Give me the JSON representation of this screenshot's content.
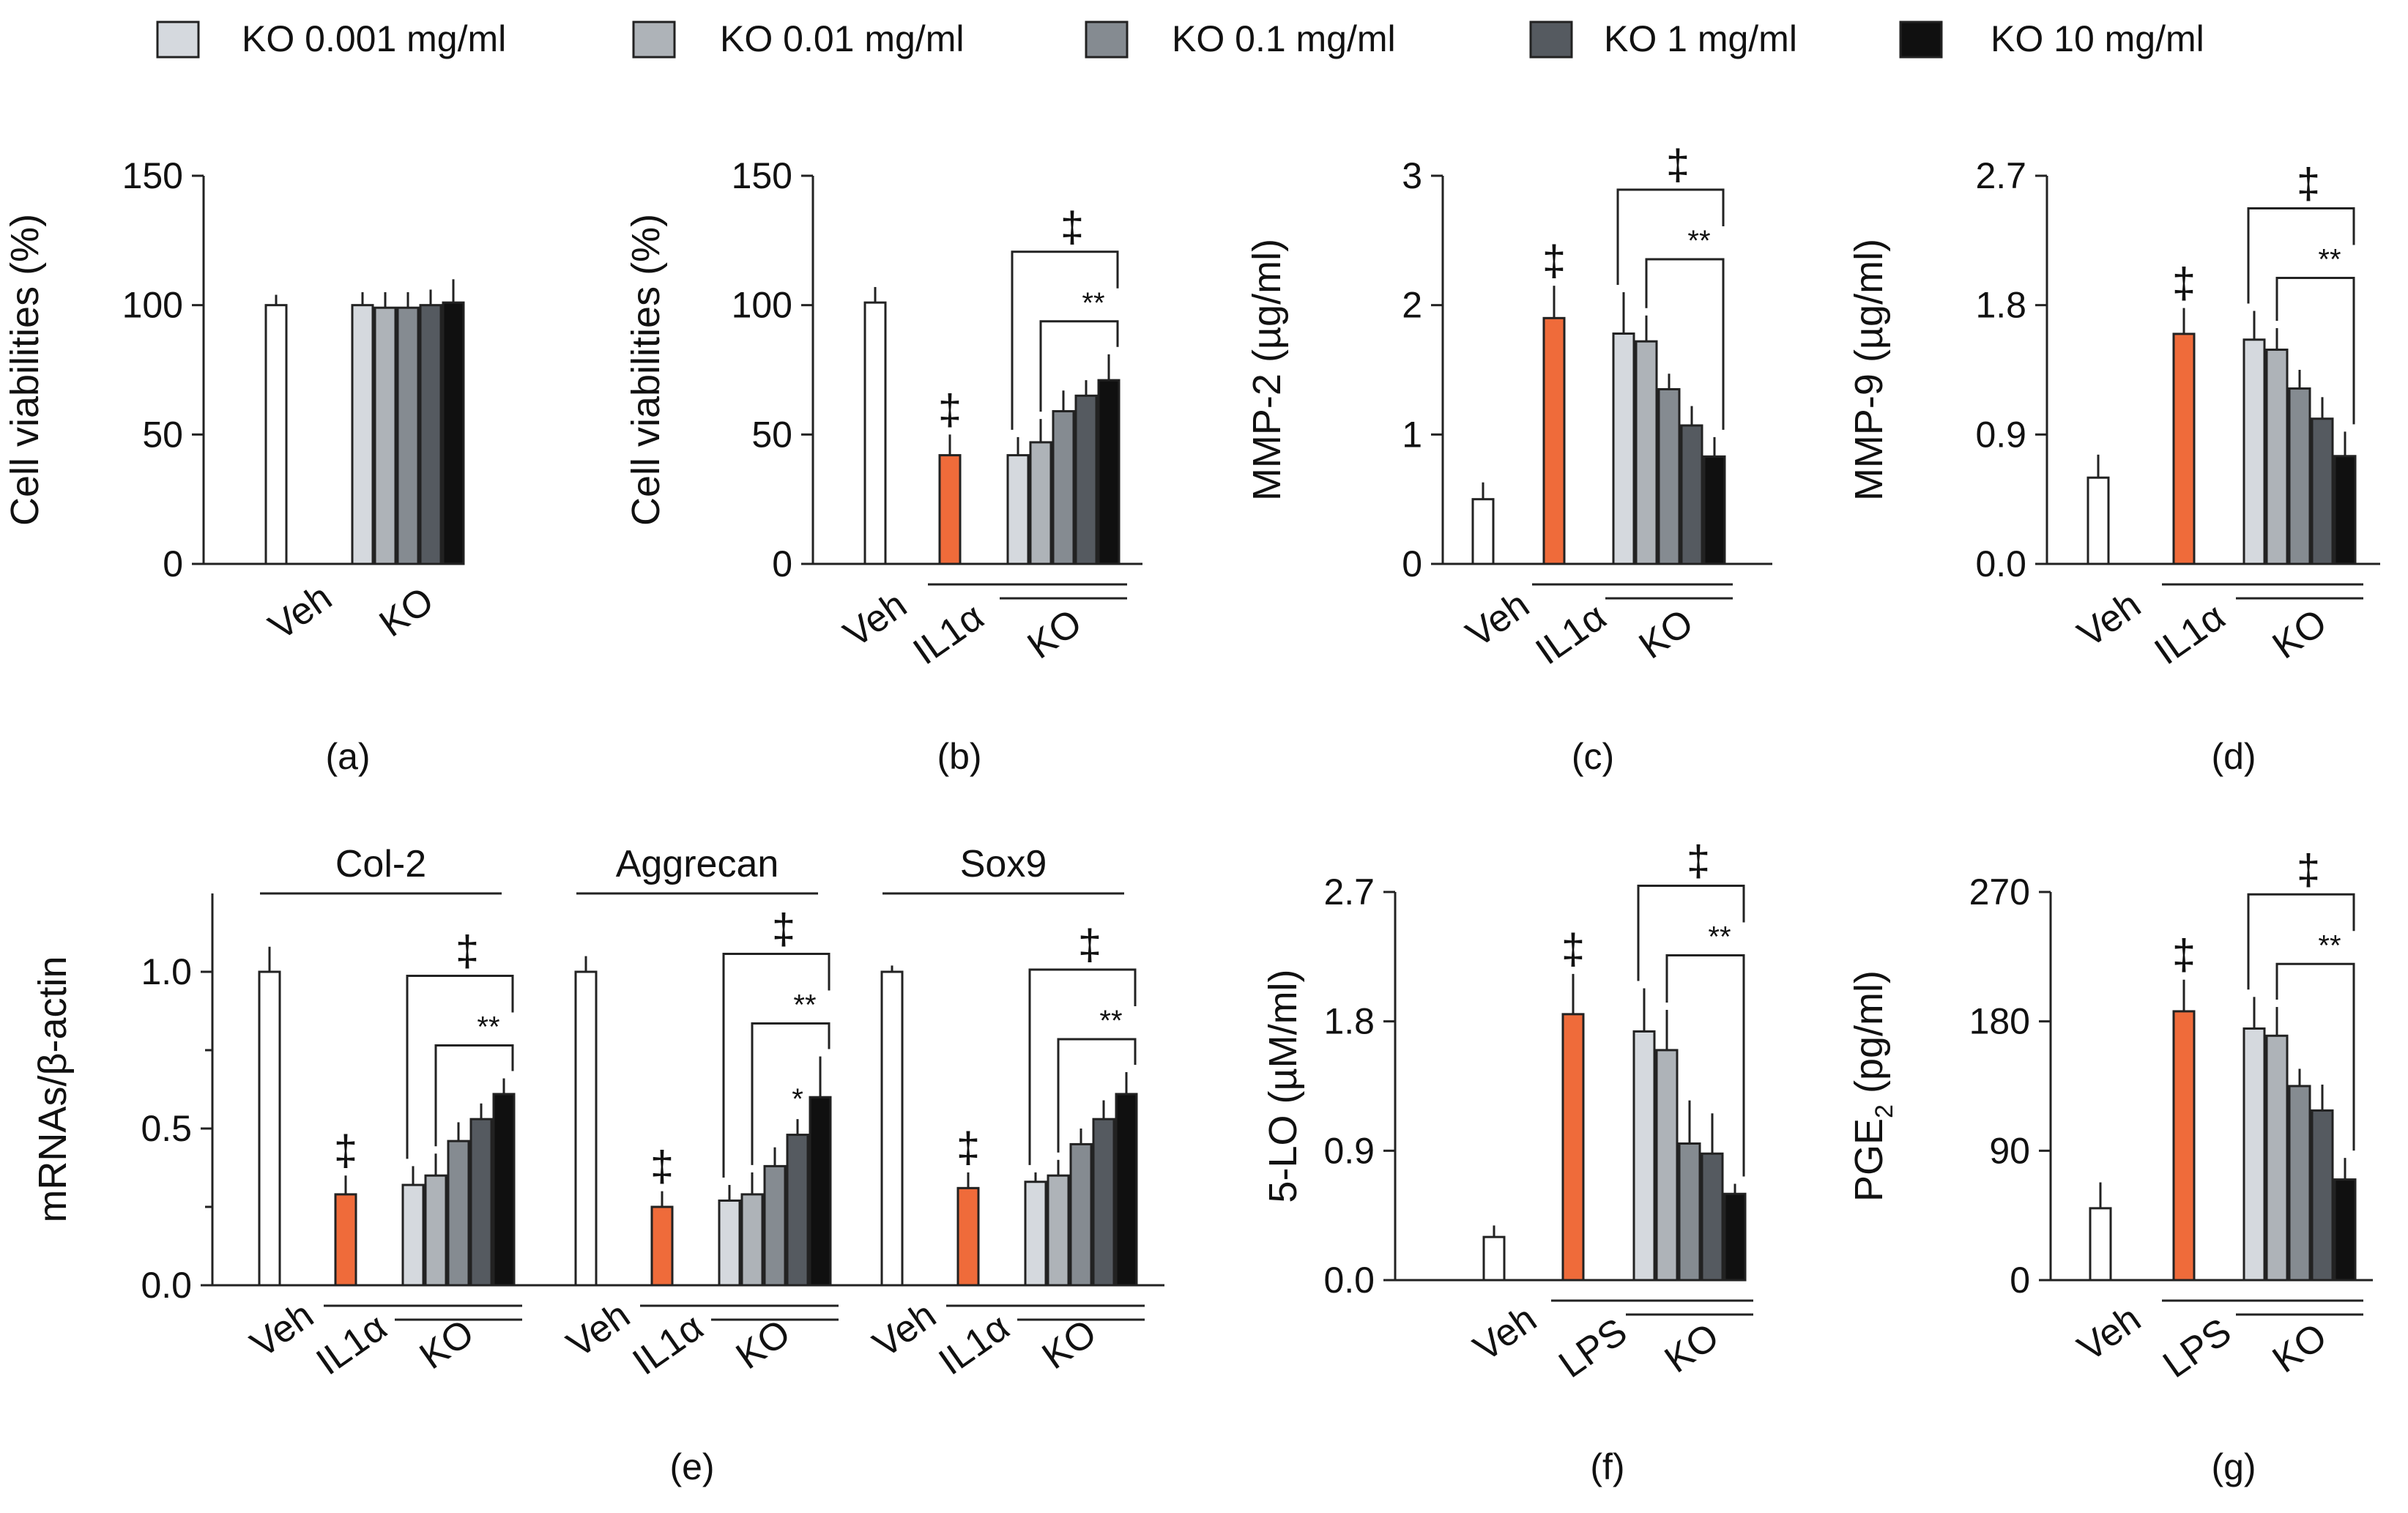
{
  "figure": {
    "legend": [
      {
        "label": "KO 0.001 mg/ml",
        "color": "#d5d9de"
      },
      {
        "label": "KO 0.01 mg/ml",
        "color": "#aeb3b8"
      },
      {
        "label": "KO 0.1 mg/ml",
        "color": "#858b91"
      },
      {
        "label": "KO 1 mg/ml",
        "color": "#555a60"
      },
      {
        "label": "KO 10 mg/ml",
        "color": "#101010"
      }
    ],
    "colors": {
      "veh": "#ffffff",
      "stim": "#ef6b3a",
      "axis": "#222222"
    },
    "symbols": {
      "dagger": "‡",
      "double_star": "**",
      "star": "*"
    }
  },
  "chart_data": [
    {
      "id": "a",
      "panel_label": "(a)",
      "type": "bar",
      "ylabel": "Cell viabilities (%)",
      "ylim": [
        0,
        150
      ],
      "yticks": [
        "0",
        "50",
        "100",
        "150"
      ],
      "groups": [
        {
          "label": "Veh",
          "bars": [
            {
              "value": 100,
              "err": 4,
              "color": "veh"
            }
          ]
        },
        {
          "label": "KO",
          "bars": [
            {
              "value": 100,
              "err": 5,
              "color": "k1"
            },
            {
              "value": 99,
              "err": 6,
              "color": "k2"
            },
            {
              "value": 99,
              "err": 6,
              "color": "k3"
            },
            {
              "value": 100,
              "err": 6,
              "color": "k4"
            },
            {
              "value": 101,
              "err": 9,
              "color": "k5"
            }
          ]
        }
      ]
    },
    {
      "id": "b",
      "panel_label": "(b)",
      "type": "bar",
      "ylabel": "Cell viabilities (%)",
      "ylim": [
        0,
        150
      ],
      "yticks": [
        "0",
        "50",
        "100",
        "150"
      ],
      "groups": [
        {
          "label": "Veh",
          "bars": [
            {
              "value": 101,
              "err": 6,
              "color": "veh"
            }
          ]
        },
        {
          "label": "IL1α",
          "bars": [
            {
              "value": 42,
              "err": 8,
              "color": "stim",
              "mark": "‡"
            }
          ]
        },
        {
          "label": "KO",
          "bars": [
            {
              "value": 42,
              "err": 7,
              "color": "k1"
            },
            {
              "value": 47,
              "err": 9,
              "color": "k2"
            },
            {
              "value": 59,
              "err": 8,
              "color": "k3"
            },
            {
              "value": 65,
              "err": 6,
              "color": "k4"
            },
            {
              "value": 71,
              "err": 10,
              "color": "k5"
            }
          ]
        }
      ],
      "brackets": [
        {
          "text": "‡"
        },
        {
          "text": "**"
        }
      ]
    },
    {
      "id": "c",
      "panel_label": "(c)",
      "type": "bar",
      "ylabel": "MMP-2 (µg/ml)",
      "ylim": [
        0,
        3
      ],
      "yticks": [
        "0",
        "1",
        "2",
        "3"
      ],
      "groups": [
        {
          "label": "Veh",
          "bars": [
            {
              "value": 0.5,
              "err": 0.13,
              "color": "veh"
            }
          ]
        },
        {
          "label": "IL1α",
          "bars": [
            {
              "value": 1.9,
              "err": 0.25,
              "color": "stim",
              "mark": "‡"
            }
          ]
        },
        {
          "label": "KO",
          "bars": [
            {
              "value": 1.78,
              "err": 0.32,
              "color": "k1"
            },
            {
              "value": 1.72,
              "err": 0.2,
              "color": "k2"
            },
            {
              "value": 1.35,
              "err": 0.12,
              "color": "k3"
            },
            {
              "value": 1.07,
              "err": 0.15,
              "color": "k4"
            },
            {
              "value": 0.83,
              "err": 0.15,
              "color": "k5"
            }
          ]
        }
      ],
      "brackets": [
        {
          "text": "‡"
        },
        {
          "text": "**"
        }
      ]
    },
    {
      "id": "d",
      "panel_label": "(d)",
      "type": "bar",
      "ylabel": "MMP-9 (µg/ml)",
      "ylim": [
        0,
        2.7
      ],
      "yticks": [
        "0.0",
        "0.9",
        "1.8",
        "2.7"
      ],
      "groups": [
        {
          "label": "Veh",
          "bars": [
            {
              "value": 0.6,
              "err": 0.16,
              "color": "veh"
            }
          ]
        },
        {
          "label": "IL1α",
          "bars": [
            {
              "value": 1.6,
              "err": 0.18,
              "color": "stim",
              "mark": "‡"
            }
          ]
        },
        {
          "label": "KO",
          "bars": [
            {
              "value": 1.56,
              "err": 0.2,
              "color": "k1"
            },
            {
              "value": 1.49,
              "err": 0.15,
              "color": "k2"
            },
            {
              "value": 1.22,
              "err": 0.13,
              "color": "k3"
            },
            {
              "value": 1.01,
              "err": 0.15,
              "color": "k4"
            },
            {
              "value": 0.75,
              "err": 0.17,
              "color": "k5"
            }
          ]
        }
      ],
      "brackets": [
        {
          "text": "‡"
        },
        {
          "text": "**"
        }
      ]
    },
    {
      "id": "e",
      "panel_label": "(e)",
      "type": "bar",
      "ylabel": "mRNAs/β-actin",
      "ylim": [
        0,
        1.25
      ],
      "yticks": [
        "0.0",
        "0.5",
        "1.0"
      ],
      "subsets": [
        {
          "title": "Col-2",
          "groups": [
            {
              "label": "Veh",
              "bars": [
                {
                  "value": 1.0,
                  "err": 0.08,
                  "color": "veh"
                }
              ]
            },
            {
              "label": "IL1α",
              "bars": [
                {
                  "value": 0.29,
                  "err": 0.06,
                  "color": "stim",
                  "mark": "‡"
                }
              ]
            },
            {
              "label": "KO",
              "bars": [
                {
                  "value": 0.32,
                  "err": 0.06,
                  "color": "k1"
                },
                {
                  "value": 0.35,
                  "err": 0.07,
                  "color": "k2"
                },
                {
                  "value": 0.46,
                  "err": 0.06,
                  "color": "k3"
                },
                {
                  "value": 0.53,
                  "err": 0.05,
                  "color": "k4"
                },
                {
                  "value": 0.61,
                  "err": 0.05,
                  "color": "k5"
                }
              ]
            }
          ],
          "brackets": [
            {
              "text": "‡"
            },
            {
              "text": "**"
            }
          ]
        },
        {
          "title": "Aggrecan",
          "groups": [
            {
              "label": "Veh",
              "bars": [
                {
                  "value": 1.0,
                  "err": 0.05,
                  "color": "veh"
                }
              ]
            },
            {
              "label": "IL1α",
              "bars": [
                {
                  "value": 0.25,
                  "err": 0.05,
                  "color": "stim",
                  "mark": "‡"
                }
              ]
            },
            {
              "label": "KO",
              "bars": [
                {
                  "value": 0.27,
                  "err": 0.05,
                  "color": "k1"
                },
                {
                  "value": 0.29,
                  "err": 0.07,
                  "color": "k2"
                },
                {
                  "value": 0.38,
                  "err": 0.06,
                  "color": "k3"
                },
                {
                  "value": 0.48,
                  "err": 0.05,
                  "color": "k4",
                  "mark": "*"
                },
                {
                  "value": 0.6,
                  "err": 0.13,
                  "color": "k5"
                }
              ]
            }
          ],
          "brackets": [
            {
              "text": "‡"
            },
            {
              "text": "**"
            }
          ]
        },
        {
          "title": "Sox9",
          "groups": [
            {
              "label": "Veh",
              "bars": [
                {
                  "value": 1.0,
                  "err": 0.02,
                  "color": "veh"
                }
              ]
            },
            {
              "label": "IL1α",
              "bars": [
                {
                  "value": 0.31,
                  "err": 0.05,
                  "color": "stim",
                  "mark": "‡"
                }
              ]
            },
            {
              "label": "KO",
              "bars": [
                {
                  "value": 0.33,
                  "err": 0.03,
                  "color": "k1"
                },
                {
                  "value": 0.35,
                  "err": 0.05,
                  "color": "k2"
                },
                {
                  "value": 0.45,
                  "err": 0.05,
                  "color": "k3"
                },
                {
                  "value": 0.53,
                  "err": 0.06,
                  "color": "k4"
                },
                {
                  "value": 0.61,
                  "err": 0.07,
                  "color": "k5"
                }
              ]
            }
          ],
          "brackets": [
            {
              "text": "‡"
            },
            {
              "text": "**"
            }
          ]
        }
      ]
    },
    {
      "id": "f",
      "panel_label": "(f)",
      "type": "bar",
      "ylabel": "5-LO (µM/ml)",
      "ylim": [
        0,
        2.7
      ],
      "yticks": [
        "0.0",
        "0.9",
        "1.8",
        "2.7"
      ],
      "groups": [
        {
          "label": "Veh",
          "bars": [
            {
              "value": 0.3,
              "err": 0.08,
              "color": "veh"
            }
          ]
        },
        {
          "label": "LPS",
          "bars": [
            {
              "value": 1.85,
              "err": 0.28,
              "color": "stim",
              "mark": "‡"
            }
          ]
        },
        {
          "label": "KO",
          "bars": [
            {
              "value": 1.73,
              "err": 0.3,
              "color": "k1"
            },
            {
              "value": 1.6,
              "err": 0.28,
              "color": "k2"
            },
            {
              "value": 0.95,
              "err": 0.3,
              "color": "k3"
            },
            {
              "value": 0.88,
              "err": 0.28,
              "color": "k4"
            },
            {
              "value": 0.6,
              "err": 0.07,
              "color": "k5"
            }
          ]
        }
      ],
      "brackets": [
        {
          "text": "‡"
        },
        {
          "text": "**"
        }
      ]
    },
    {
      "id": "g",
      "panel_label": "(g)",
      "type": "bar",
      "ylabel": "PGE2 (pg/ml)",
      "ylabel_main": "PGE",
      "ylabel_sub": "2",
      "ylabel_unit": " (pg/ml)",
      "ylim": [
        0,
        270
      ],
      "yticks": [
        "0",
        "90",
        "180",
        "270"
      ],
      "groups": [
        {
          "label": "Veh",
          "bars": [
            {
              "value": 50,
              "err": 18,
              "color": "veh"
            }
          ]
        },
        {
          "label": "LPS",
          "bars": [
            {
              "value": 187,
              "err": 22,
              "color": "stim",
              "mark": "‡"
            }
          ]
        },
        {
          "label": "KO",
          "bars": [
            {
              "value": 175,
              "err": 22,
              "color": "k1"
            },
            {
              "value": 170,
              "err": 20,
              "color": "k2"
            },
            {
              "value": 135,
              "err": 12,
              "color": "k3"
            },
            {
              "value": 118,
              "err": 18,
              "color": "k4"
            },
            {
              "value": 70,
              "err": 15,
              "color": "k5"
            }
          ]
        }
      ],
      "brackets": [
        {
          "text": "‡"
        },
        {
          "text": "**"
        }
      ]
    }
  ]
}
